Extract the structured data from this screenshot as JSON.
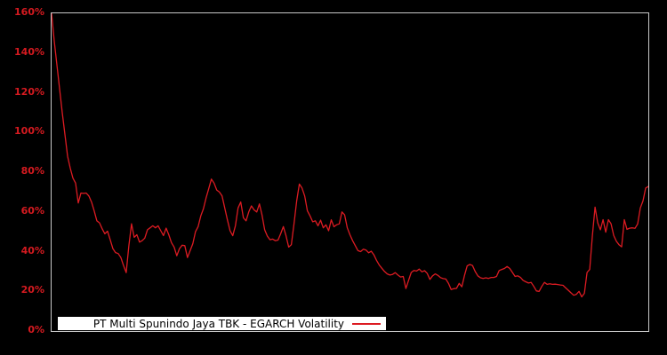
{
  "colors": {
    "background": "#000000",
    "plot_background": "#000000",
    "plot_border": "#c9c9c9",
    "line_color": "#dc1b22",
    "axis_label_color": "#d61a20",
    "legend_background": "#ffffff",
    "legend_text": "#000000"
  },
  "chart_data": {
    "type": "line",
    "title": "",
    "legend_label": "PT Multi Spunindo Jaya TBK - EGARCH Volatility",
    "series_name": "EGARCH Volatility",
    "legend_position": "bottom-left-inside",
    "grid": false,
    "x_axis": {
      "label": "",
      "tick_labels": [],
      "note": "time axis, no tick labels shown"
    },
    "y_axis": {
      "label": "",
      "unit": "%",
      "min": 0,
      "max": 160,
      "tick_step": 20,
      "tick_labels": [
        "0%",
        "20%",
        "40%",
        "60%",
        "80%",
        "100%",
        "120%",
        "140%",
        "160%"
      ]
    },
    "values_percent": [
      160,
      146,
      134,
      122,
      110,
      99,
      88,
      82,
      77,
      74.5,
      64.5,
      69.5,
      69.3,
      69.5,
      68,
      65,
      60.5,
      55.5,
      54.5,
      51.5,
      49,
      50.3,
      46,
      41.5,
      39.5,
      39,
      37,
      33,
      29.4,
      43,
      54,
      47.2,
      48.5,
      44.8,
      45.5,
      46.8,
      51,
      52,
      53,
      52,
      53,
      50.5,
      48.1,
      51.8,
      48.5,
      44.5,
      42.3,
      37.9,
      41.5,
      43.2,
      43,
      37,
      40.5,
      44,
      50,
      52.6,
      58,
      61.5,
      67,
      71.7,
      76.5,
      74.5,
      71,
      70,
      68,
      62,
      56,
      50.5,
      48,
      53,
      62,
      65,
      57,
      55.5,
      60,
      63,
      61,
      60,
      64,
      58.5,
      51,
      47.8,
      46,
      46.3,
      45.5,
      45.8,
      49,
      52.6,
      48,
      42.3,
      43.5,
      54,
      65.5,
      74,
      72,
      68,
      60.6,
      58,
      55,
      55.5,
      53,
      55.8,
      52,
      53.5,
      50.5,
      56,
      52.5,
      53.5,
      54,
      60,
      58.5,
      52,
      48.5,
      45.5,
      43,
      40.5,
      40,
      41.2,
      40.8,
      39.4,
      40.2,
      38.3,
      35.5,
      33.2,
      31.6,
      30,
      28.8,
      28.2,
      28.5,
      29.4,
      28.2,
      27.2,
      27.5,
      21.4,
      25.5,
      29.5,
      30.5,
      30.2,
      31.2,
      29.8,
      30.4,
      29,
      26,
      27.8,
      28.8,
      28,
      26.9,
      26.4,
      26.2,
      24,
      20.9,
      21.3,
      21.5,
      24,
      22.3,
      28,
      32.8,
      33.5,
      33,
      30,
      27.8,
      26.8,
      26.5,
      26.8,
      26.5,
      27,
      27,
      27.5,
      30.5,
      31,
      31.5,
      32.5,
      31.5,
      29.5,
      27.5,
      27.8,
      27,
      25.5,
      24.8,
      24.2,
      24.5,
      22.5,
      20.2,
      20,
      22.5,
      24.5,
      23.5,
      23.8,
      23.5,
      23.6,
      23.4,
      23.2,
      23,
      21.7,
      20.5,
      19.2,
      18,
      18.5,
      20,
      17.2,
      19,
      29.5,
      31,
      48,
      62.4,
      54.5,
      51,
      56.1,
      49.8,
      56.1,
      54,
      48.1,
      45.2,
      43.5,
      42.4,
      56.1,
      51.2,
      51.8,
      52,
      51.7,
      53.9,
      62,
      65.5,
      72,
      72.8
    ]
  }
}
